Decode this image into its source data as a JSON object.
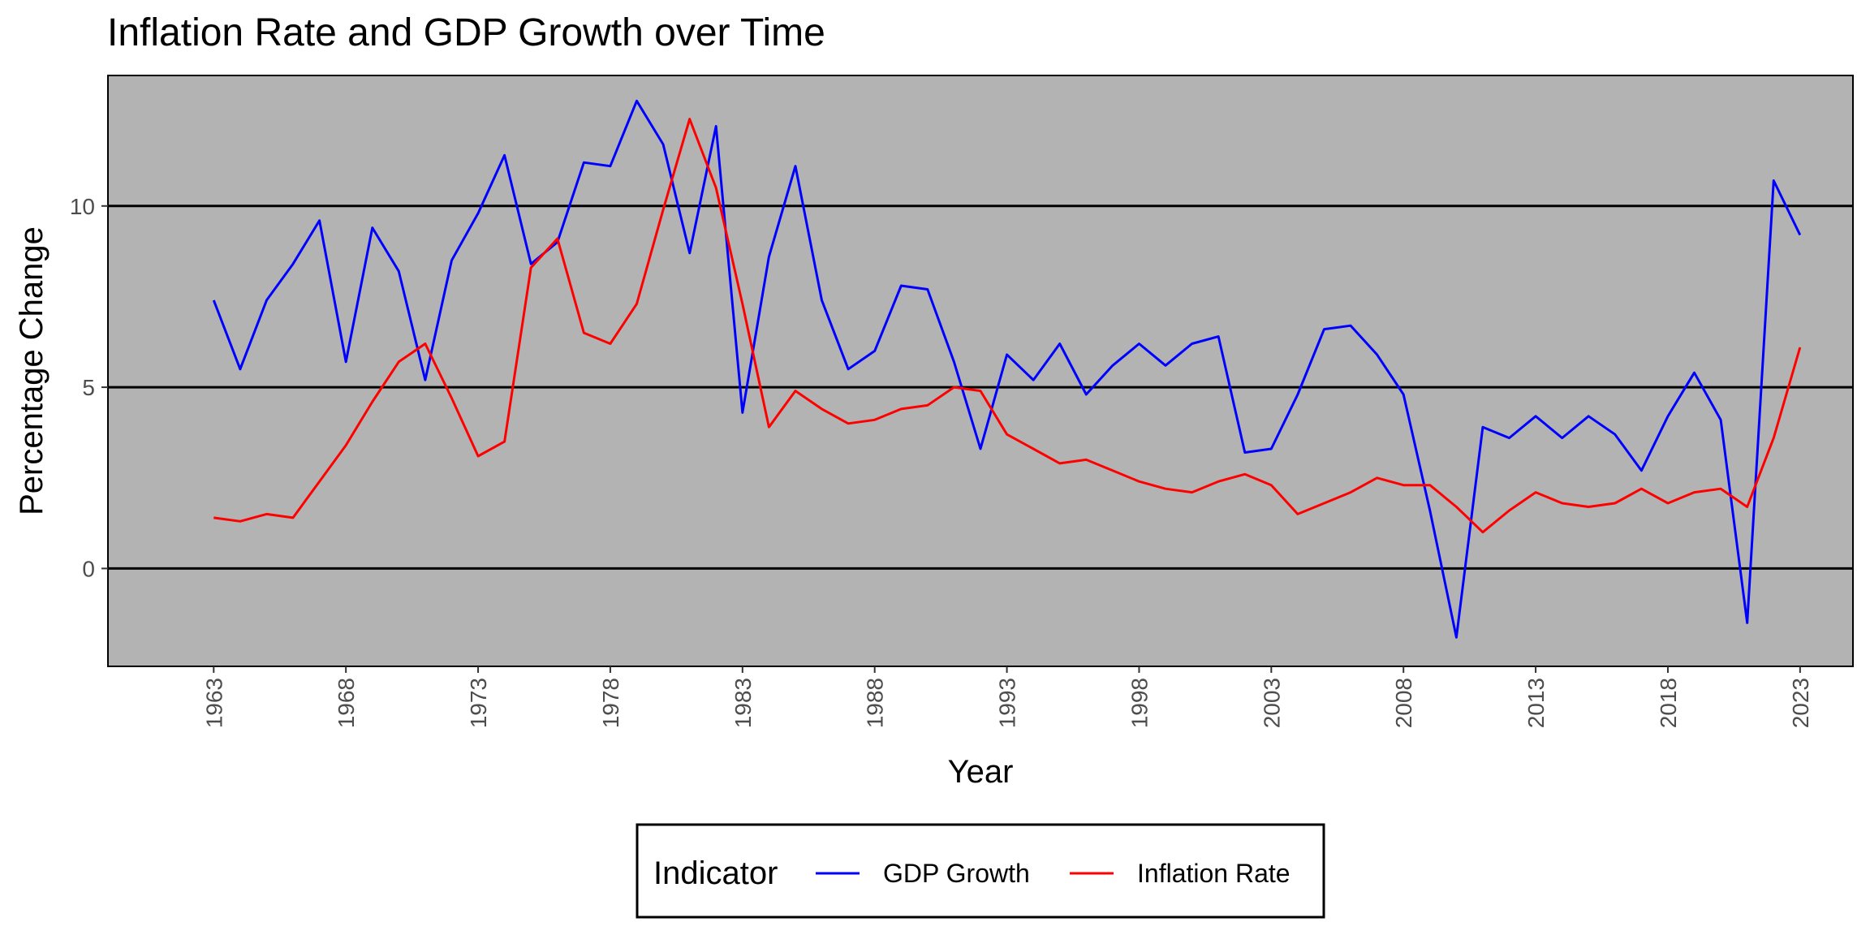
{
  "chart_data": {
    "type": "line",
    "title": "Inflation Rate and GDP Growth over Time",
    "xlabel": "Year",
    "ylabel": "Percentage Change",
    "xlim": [
      1959,
      2025
    ],
    "ylim": [
      -2.7,
      13.6
    ],
    "x_ticks": [
      1963,
      1968,
      1973,
      1978,
      1983,
      1988,
      1993,
      1998,
      2003,
      2008,
      2013,
      2018,
      2023
    ],
    "y_ticks": [
      0,
      5,
      10
    ],
    "grid": "major y gridlines only (black)",
    "panel_background": "#b3b3b3",
    "legend": {
      "title": "Indicator",
      "position": "bottom",
      "entries": [
        "GDP Growth",
        "Inflation Rate"
      ]
    },
    "x": [
      1963,
      1964,
      1965,
      1966,
      1967,
      1968,
      1969,
      1970,
      1971,
      1972,
      1973,
      1974,
      1975,
      1976,
      1977,
      1978,
      1979,
      1980,
      1981,
      1982,
      1983,
      1984,
      1985,
      1986,
      1987,
      1988,
      1989,
      1990,
      1991,
      1992,
      1993,
      1994,
      1995,
      1996,
      1997,
      1998,
      1999,
      2000,
      2001,
      2002,
      2003,
      2004,
      2005,
      2006,
      2007,
      2008,
      2009,
      2010,
      2011,
      2012,
      2013,
      2014,
      2015,
      2016,
      2017,
      2018,
      2019,
      2020,
      2021,
      2022,
      2023
    ],
    "series": [
      {
        "name": "GDP Growth",
        "color": "#0000ff",
        "values": [
          7.4,
          5.5,
          7.4,
          8.4,
          9.6,
          5.7,
          9.4,
          8.2,
          5.2,
          8.5,
          9.8,
          11.4,
          8.4,
          9.0,
          11.2,
          11.1,
          12.9,
          11.7,
          8.7,
          12.2,
          4.3,
          8.6,
          11.1,
          7.4,
          5.5,
          6.0,
          7.8,
          7.7,
          5.7,
          3.3,
          5.9,
          5.2,
          6.2,
          4.8,
          5.6,
          6.2,
          5.6,
          6.2,
          6.4,
          3.2,
          3.3,
          4.8,
          6.6,
          6.7,
          5.9,
          4.8,
          1.6,
          -1.9,
          3.9,
          3.6,
          4.2,
          3.6,
          4.2,
          3.7,
          2.7,
          4.2,
          5.4,
          4.1,
          -1.5,
          10.7,
          9.2
        ]
      },
      {
        "name": "Inflation Rate",
        "color": "#ff0000",
        "values": [
          1.4,
          1.3,
          1.5,
          1.4,
          2.4,
          3.4,
          4.6,
          5.7,
          6.2,
          4.7,
          3.1,
          3.5,
          8.3,
          9.1,
          6.5,
          6.2,
          7.3,
          9.9,
          12.4,
          10.5,
          7.3,
          3.9,
          4.9,
          4.4,
          4.0,
          4.1,
          4.4,
          4.5,
          5.0,
          4.9,
          3.7,
          3.3,
          2.9,
          3.0,
          2.7,
          2.4,
          2.2,
          2.1,
          2.4,
          2.6,
          2.3,
          1.5,
          1.8,
          2.1,
          2.5,
          2.3,
          2.3,
          1.7,
          1.0,
          1.6,
          2.1,
          1.8,
          1.7,
          1.8,
          2.2,
          1.8,
          2.1,
          2.2,
          1.7,
          3.6,
          6.1
        ]
      }
    ]
  }
}
